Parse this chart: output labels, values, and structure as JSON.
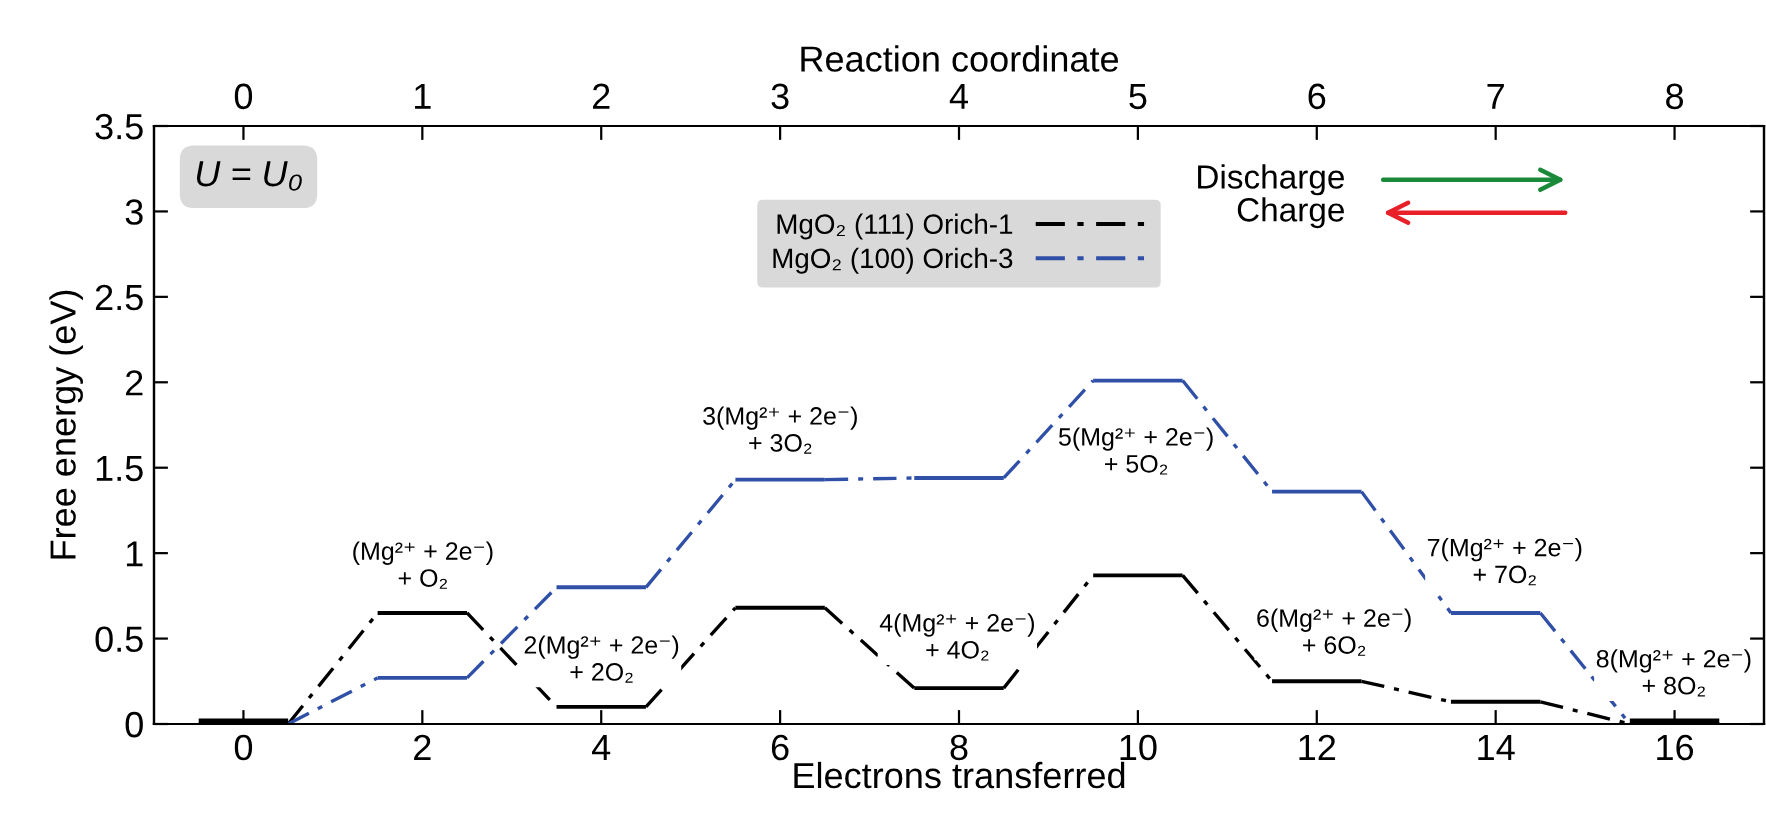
{
  "chart_data": {
    "type": "line",
    "xlabel": "Electrons transferred",
    "ylabel": "Free energy (eV)",
    "x2label": "Reaction coordinate",
    "xlim": [
      -1,
      17
    ],
    "xticks": [
      0,
      2,
      4,
      6,
      8,
      10,
      12,
      14,
      16
    ],
    "x2lim": [
      -0.5,
      8.5
    ],
    "x2ticks": [
      0,
      1,
      2,
      3,
      4,
      5,
      6,
      7,
      8
    ],
    "ylim": [
      0,
      3.5
    ],
    "yticks": [
      0,
      0.5,
      1,
      1.5,
      2,
      2.5,
      3,
      3.5
    ],
    "legend": "top center",
    "grid": false,
    "line_style": "dashed",
    "marker": "none",
    "series": [
      {
        "name": "MgO₂ (111) Orich-1",
        "color": "#000000",
        "x": [
          -0.5,
          0.5,
          1.5,
          2.5,
          3.5,
          4.5,
          5.5,
          6.5,
          7.5,
          8.5,
          9.5,
          10.5,
          11.5,
          12.5,
          13.5,
          14.5,
          15.5,
          16.5
        ],
        "values": [
          0,
          0,
          0.65,
          0.65,
          0.1,
          0.1,
          0.68,
          0.68,
          0.21,
          0.21,
          0.87,
          0.87,
          0.25,
          0.25,
          0.13,
          0.13,
          0,
          0
        ]
      },
      {
        "name": "MgO₂ (100) Orich-3",
        "color": "#3050a8",
        "x": [
          -0.5,
          0.5,
          1.5,
          2.5,
          3.5,
          4.5,
          5.5,
          6.5,
          7.5,
          8.5,
          9.5,
          10.5,
          11.5,
          12.5,
          13.5,
          14.5,
          15.5,
          16.5
        ],
        "values": [
          0,
          0,
          0.27,
          0.27,
          0.8,
          0.8,
          1.43,
          1.43,
          1.44,
          1.44,
          2.01,
          2.01,
          1.36,
          1.36,
          0.65,
          0.65,
          0,
          0
        ]
      }
    ],
    "annotations": [
      "(Mg²⁺ + 2e⁻)\n+ O₂",
      "2(Mg²⁺ + 2e⁻)\n+ 2O₂",
      "3(Mg²⁺ + 2e⁻)\n+ 3O₂",
      "4(Mg²⁺ + 2e⁻)\n+ 4O₂",
      "5(Mg²⁺ + 2e⁻)\n+ 5O₂",
      "6(Mg²⁺ + 2e⁻)\n+ 6O₂",
      "7(Mg²⁺ + 2e⁻)\n+ 7O₂",
      "8(Mg²⁺ + 2e⁻)\n+ 8O₂",
      "U = U₀",
      "Discharge",
      "Charge"
    ]
  }
}
